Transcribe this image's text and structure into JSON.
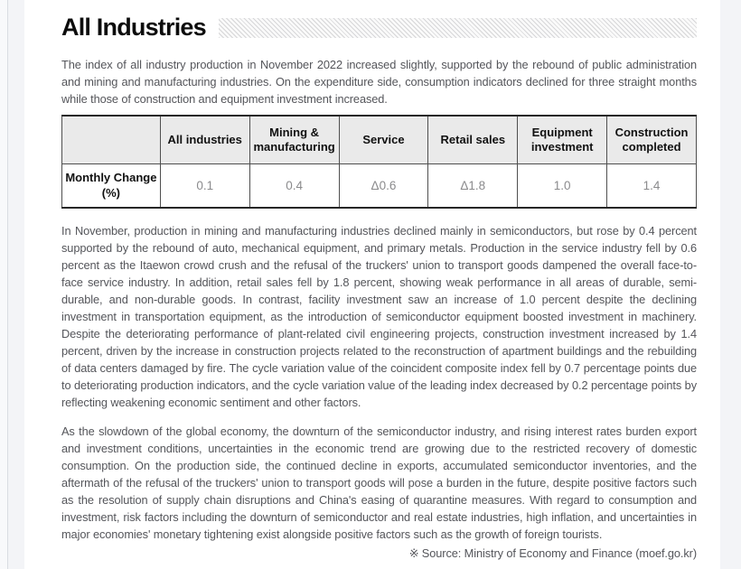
{
  "document": {
    "title": "All Industries",
    "intro": "The index of all industry production in November 2022 increased slightly, supported by the rebound of public administration and mining and manufacturing industries. On the expenditure side, consumption indicators declined for three straight months while those of construction and equipment investment increased.",
    "paragraph_1": "In November, production in mining and manufacturing industries declined mainly in semiconductors, but rose by 0.4 percent supported by the rebound of auto, mechanical equipment, and primary metals. Production in the service industry fell by 0.6 percent as the Itaewon crowd crush and the refusal of the truckers' union to transport goods dampened the overall face-to-face service industry. In addition, retail sales fell by 1.8 percent, showing weak performance in all areas of durable, semi-durable, and non-durable goods. In contrast, facility investment saw an increase of 1.0 percent despite the declining investment in transportation equipment, as the introduction of semiconductor equipment boosted investment in machinery. Despite the deteriorating performance of plant-related civil engineering projects, construction investment increased by 1.4 percent, driven by the increase in construction projects related to the reconstruction of apartment buildings and the rebuilding of data centers damaged by fire. The cycle variation value of the coincident composite index fell by 0.7 percentage points due to deteriorating production indicators, and the cycle variation value of the leading index decreased by 0.2 percentage points by reflecting weakening economic sentiment and other factors.",
    "paragraph_2": "As the slowdown of the global economy, the downturn of the semiconductor industry, and rising interest rates burden export and investment conditions, uncertainties in the economic trend are growing due to the restricted recovery of domestic consumption. On the production side, the continued decline in exports, accumulated semiconductor inventories, and the aftermath of the refusal of the truckers' union to transport goods will pose a burden in the future, despite positive factors such as the resolution of supply chain disruptions and China's easing of quarantine measures. With regard to consumption and investment, risk factors including the downturn of semiconductor and real estate industries, high inflation, and uncertainties in major economies' monetary tightening exist alongside positive factors such as the growth of foreign tourists.",
    "source_note": "※ Source: Ministry of Economy and Finance (moef.go.kr)"
  },
  "table": {
    "row_header": "Monthly Change (%)",
    "columns": [
      "All industries",
      "Mining & manufacturing",
      "Service",
      "Retail sales",
      "Equipment investment",
      "Construction completed"
    ],
    "monthly_change": [
      "0.1",
      "0.4",
      "Δ0.6",
      "Δ1.8",
      "1.0",
      "1.4"
    ]
  },
  "colors": {
    "page_background": "#f3f4f7",
    "card_background": "#ffffff",
    "table_header_background": "#eaeaea",
    "table_border_dark": "#262626",
    "title_text": "#0c0c0c",
    "body_text": "#54555a",
    "value_text": "#8b8b8d"
  }
}
